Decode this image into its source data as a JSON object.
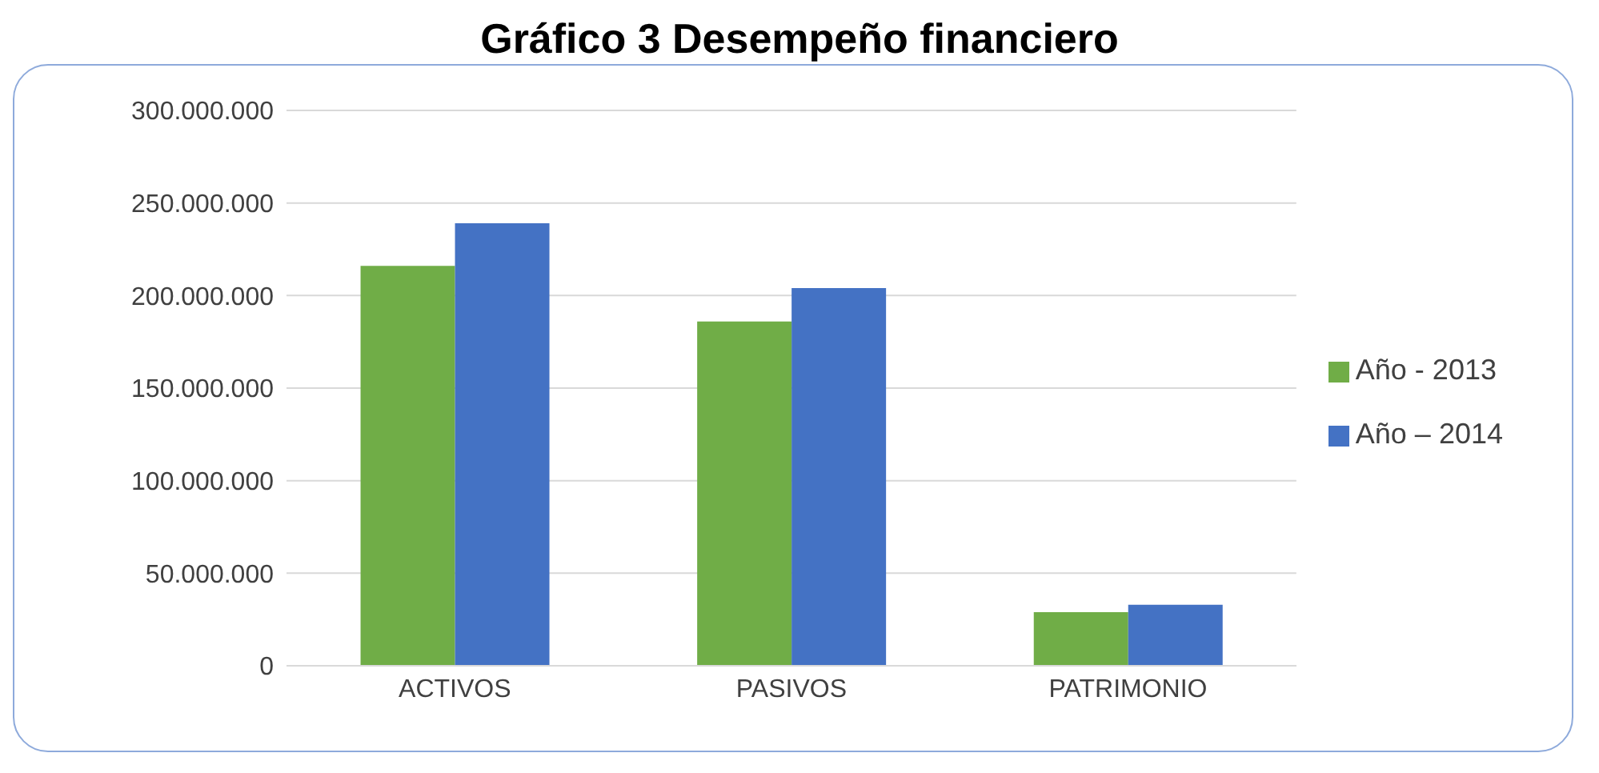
{
  "chart_data": {
    "type": "bar",
    "title": "Gráfico 3 Desempeño financiero",
    "categories": [
      "ACTIVOS",
      "PASIVOS",
      "PATRIMONIO"
    ],
    "series": [
      {
        "name": "Año - 2013",
        "color": "#70ad47",
        "values": [
          216000000,
          186000000,
          29000000
        ]
      },
      {
        "name": "Año – 2014",
        "color": "#4472c4",
        "values": [
          239000000,
          204000000,
          33000000
        ]
      }
    ],
    "ylim": [
      0,
      300000000
    ],
    "yticks": [
      0,
      {
        "value": 50000000,
        "label": "50.000.000"
      },
      {
        "value": 100000000,
        "label": "100.000.000"
      },
      {
        "value": 150000000,
        "label": "150.000.000"
      },
      {
        "value": 200000000,
        "label": "200.000.000"
      },
      {
        "value": 250000000,
        "label": "250.000.000"
      },
      {
        "value": 300000000,
        "label": "300.000.000"
      }
    ],
    "grid": "y",
    "legend": "right"
  }
}
